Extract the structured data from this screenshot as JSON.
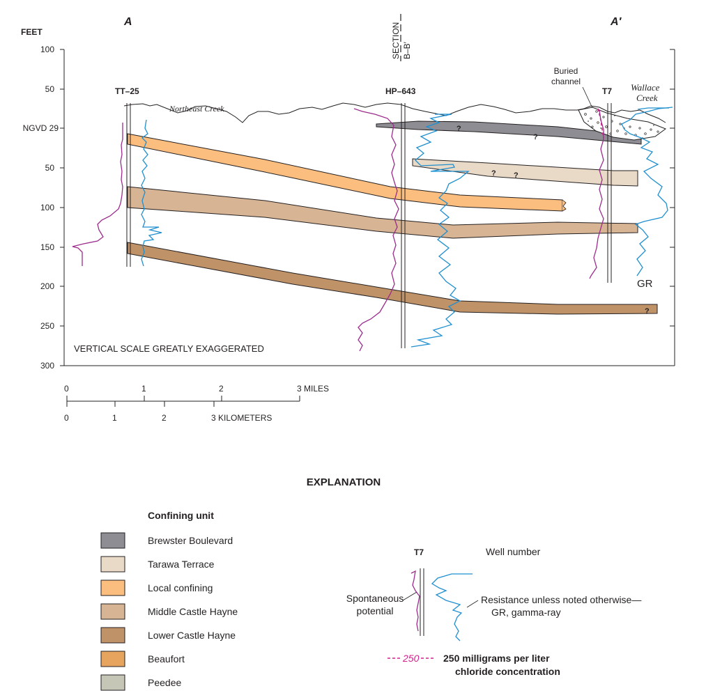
{
  "section": {
    "left_label": "A",
    "right_label": "A′",
    "section_marker_line1": "SECTION",
    "section_marker_line2": "B–B′",
    "y_axis_title": "FEET",
    "y_ticks": [
      "100",
      "50",
      "NGVD 29",
      "50",
      "100",
      "150",
      "200",
      "250",
      "300"
    ],
    "exaggeration_note": "VERTICAL SCALE GREATLY EXAGGERATED",
    "creeks": {
      "northeast": "Northeast Creek",
      "wallace_line1": "Wallace",
      "wallace_line2": "Creek"
    },
    "buried_channel_line1": "Buried",
    "buried_channel_line2": "channel",
    "wells": {
      "tt25": "TT–25",
      "hp643": "HP–643",
      "t7": "T7"
    },
    "gr_label": "GR",
    "uncertain_mark": "?"
  },
  "scale_bar": {
    "miles_ticks": [
      "0",
      "1",
      "2"
    ],
    "miles_end": "3 MILES",
    "km_ticks": [
      "0",
      "1",
      "2"
    ],
    "km_end": "3 KILOMETERS"
  },
  "explanation": {
    "title": "EXPLANATION",
    "confining_heading": "Confining unit",
    "units": [
      {
        "label": "Brewster Boulevard",
        "color": "#8e8d93"
      },
      {
        "label": "Tarawa Terrace",
        "color": "#e9d9c7"
      },
      {
        "label": "Local confining",
        "color": "#fbbe7f"
      },
      {
        "label": "Middle Castle Hayne",
        "color": "#d6b494"
      },
      {
        "label": "Lower Castle Hayne",
        "color": "#bf9267"
      },
      {
        "label": "Beaufort",
        "color": "#e6a45e"
      },
      {
        "label": "Peedee",
        "color": "#c5c6b6"
      }
    ],
    "well_example": "T7",
    "well_number_label": "Well number",
    "sp_line1": "Spontaneous",
    "sp_line2": "potential",
    "res_line1": "Resistance unless noted otherwise—",
    "res_line2": "GR, gamma-ray",
    "chloride_value": "250",
    "chloride_line1": "250 milligrams per liter",
    "chloride_line2": "chloride concentration"
  },
  "colors": {
    "sp_log": "#9b2b8c",
    "resistance_log": "#1f8fcf",
    "chloride": "#d3208e"
  }
}
